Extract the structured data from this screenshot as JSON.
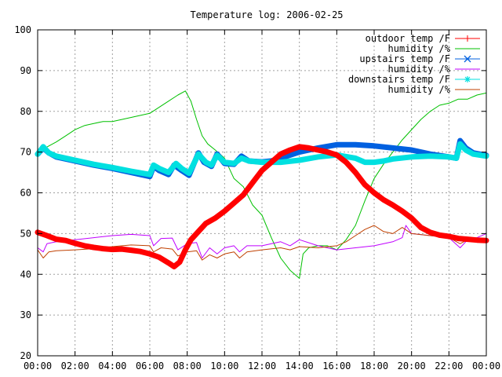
{
  "chart_data": {
    "type": "line",
    "title": "Temperature log: 2006-02-25",
    "xlabel": "",
    "ylabel": "",
    "x_ticks": [
      "00:00",
      "02:00",
      "04:00",
      "06:00",
      "08:00",
      "10:00",
      "12:00",
      "14:00",
      "16:00",
      "18:00",
      "20:00",
      "22:00",
      "00:00"
    ],
    "xlim_hours": [
      0,
      24
    ],
    "ylim": [
      20,
      100
    ],
    "y_ticks": [
      20,
      30,
      40,
      50,
      60,
      70,
      80,
      90,
      100
    ],
    "grid": true,
    "legend_position": "top-right",
    "series": [
      {
        "name": "outdoor temp /F",
        "color": "#ff0000",
        "marker": "plus",
        "points": [
          [
            0.0,
            50.3
          ],
          [
            0.5,
            49.5
          ],
          [
            1.0,
            48.6
          ],
          [
            1.5,
            48.3
          ],
          [
            2.0,
            47.6
          ],
          [
            2.5,
            47.0
          ],
          [
            3.0,
            46.6
          ],
          [
            3.5,
            46.3
          ],
          [
            4.0,
            46.1
          ],
          [
            4.5,
            46.2
          ],
          [
            5.0,
            45.9
          ],
          [
            5.5,
            45.6
          ],
          [
            6.0,
            45.0
          ],
          [
            6.5,
            44.2
          ],
          [
            7.0,
            42.8
          ],
          [
            7.3,
            41.9
          ],
          [
            7.6,
            43.0
          ],
          [
            7.9,
            46.0
          ],
          [
            8.2,
            48.5
          ],
          [
            8.6,
            50.5
          ],
          [
            9.0,
            52.5
          ],
          [
            9.5,
            53.8
          ],
          [
            10.0,
            55.5
          ],
          [
            10.5,
            57.5
          ],
          [
            11.0,
            59.5
          ],
          [
            11.5,
            62.5
          ],
          [
            12.0,
            65.5
          ],
          [
            12.5,
            67.5
          ],
          [
            13.0,
            69.5
          ],
          [
            13.5,
            70.5
          ],
          [
            14.0,
            71.3
          ],
          [
            14.5,
            71.0
          ],
          [
            15.0,
            70.5
          ],
          [
            15.5,
            70.0
          ],
          [
            16.0,
            69.3
          ],
          [
            16.5,
            67.5
          ],
          [
            17.0,
            65.0
          ],
          [
            17.5,
            62.0
          ],
          [
            18.0,
            60.0
          ],
          [
            18.5,
            58.3
          ],
          [
            19.0,
            57.0
          ],
          [
            19.5,
            55.5
          ],
          [
            20.0,
            53.8
          ],
          [
            20.5,
            51.5
          ],
          [
            21.0,
            50.3
          ],
          [
            21.5,
            49.6
          ],
          [
            22.0,
            49.3
          ],
          [
            22.5,
            48.8
          ],
          [
            23.0,
            48.6
          ],
          [
            23.5,
            48.4
          ],
          [
            24.0,
            48.3
          ]
        ]
      },
      {
        "name": "humidity /%",
        "color": "#00c000",
        "marker": "none",
        "points": [
          [
            0.0,
            70.0
          ],
          [
            1.0,
            72.5
          ],
          [
            1.5,
            74.0
          ],
          [
            2.0,
            75.5
          ],
          [
            2.5,
            76.5
          ],
          [
            3.0,
            77.0
          ],
          [
            3.5,
            77.5
          ],
          [
            4.0,
            77.5
          ],
          [
            4.5,
            78.0
          ],
          [
            5.0,
            78.5
          ],
          [
            5.5,
            79.0
          ],
          [
            6.0,
            79.5
          ],
          [
            6.5,
            81.0
          ],
          [
            7.0,
            82.5
          ],
          [
            7.5,
            84.0
          ],
          [
            7.9,
            85.0
          ],
          [
            8.2,
            82.5
          ],
          [
            8.5,
            78.0
          ],
          [
            8.8,
            74.0
          ],
          [
            9.1,
            72.0
          ],
          [
            9.5,
            70.5
          ],
          [
            10.0,
            68.5
          ],
          [
            10.5,
            63.5
          ],
          [
            11.0,
            61.5
          ],
          [
            11.5,
            57.0
          ],
          [
            12.0,
            54.5
          ],
          [
            12.5,
            49.0
          ],
          [
            13.0,
            44.0
          ],
          [
            13.5,
            41.0
          ],
          [
            14.0,
            39.0
          ],
          [
            14.2,
            45.0
          ],
          [
            14.5,
            46.5
          ],
          [
            15.0,
            47.0
          ],
          [
            15.5,
            47.0
          ],
          [
            16.0,
            46.0
          ],
          [
            16.5,
            48.5
          ],
          [
            17.0,
            52.0
          ],
          [
            17.5,
            58.0
          ],
          [
            18.0,
            63.5
          ],
          [
            18.5,
            67.0
          ],
          [
            19.0,
            70.0
          ],
          [
            19.5,
            73.0
          ],
          [
            20.0,
            75.5
          ],
          [
            20.5,
            78.0
          ],
          [
            21.0,
            80.0
          ],
          [
            21.5,
            81.5
          ],
          [
            22.0,
            82.0
          ],
          [
            22.5,
            83.0
          ],
          [
            23.0,
            83.0
          ],
          [
            23.5,
            84.0
          ],
          [
            24.0,
            84.5
          ]
        ]
      },
      {
        "name": "upstairs temp /F",
        "color": "#0060e0",
        "marker": "cross",
        "points": [
          [
            0.0,
            69.5
          ],
          [
            0.3,
            71.0
          ],
          [
            0.6,
            69.8
          ],
          [
            1.0,
            68.8
          ],
          [
            2.0,
            67.8
          ],
          [
            3.0,
            66.8
          ],
          [
            4.0,
            66.0
          ],
          [
            5.0,
            65.0
          ],
          [
            6.0,
            64.0
          ],
          [
            6.2,
            66.5
          ],
          [
            6.5,
            65.5
          ],
          [
            7.0,
            64.5
          ],
          [
            7.3,
            66.8
          ],
          [
            7.7,
            65.5
          ],
          [
            8.1,
            64.3
          ],
          [
            8.6,
            69.8
          ],
          [
            8.9,
            67.5
          ],
          [
            9.3,
            66.5
          ],
          [
            9.6,
            69.5
          ],
          [
            10.0,
            67.2
          ],
          [
            10.5,
            67.0
          ],
          [
            10.9,
            69.0
          ],
          [
            11.3,
            67.8
          ],
          [
            12.0,
            67.6
          ],
          [
            12.5,
            67.8
          ],
          [
            13.0,
            68.5
          ],
          [
            14.0,
            70.0
          ],
          [
            15.0,
            71.0
          ],
          [
            16.0,
            71.8
          ],
          [
            17.0,
            71.8
          ],
          [
            18.0,
            71.5
          ],
          [
            19.0,
            71.0
          ],
          [
            20.0,
            70.5
          ],
          [
            21.0,
            69.5
          ],
          [
            22.0,
            68.8
          ],
          [
            22.4,
            68.5
          ],
          [
            22.6,
            72.8
          ],
          [
            22.9,
            71.0
          ],
          [
            23.3,
            69.8
          ],
          [
            24.0,
            69.2
          ]
        ]
      },
      {
        "name": "humidity /%",
        "color": "#c000ff",
        "marker": "none",
        "points": [
          [
            0.0,
            46.5
          ],
          [
            0.3,
            45.5
          ],
          [
            0.5,
            47.5
          ],
          [
            1.0,
            48.0
          ],
          [
            2.0,
            48.5
          ],
          [
            3.0,
            49.0
          ],
          [
            4.0,
            49.5
          ],
          [
            5.0,
            49.8
          ],
          [
            6.0,
            49.5
          ],
          [
            6.2,
            47.0
          ],
          [
            6.6,
            48.8
          ],
          [
            7.2,
            48.9
          ],
          [
            7.5,
            46.0
          ],
          [
            8.0,
            47.5
          ],
          [
            8.5,
            47.8
          ],
          [
            8.8,
            44.0
          ],
          [
            9.2,
            46.5
          ],
          [
            9.6,
            45.0
          ],
          [
            10.0,
            46.5
          ],
          [
            10.5,
            47.0
          ],
          [
            10.8,
            45.5
          ],
          [
            11.2,
            47.0
          ],
          [
            12.0,
            47.0
          ],
          [
            13.0,
            48.0
          ],
          [
            13.5,
            47.0
          ],
          [
            14.0,
            48.5
          ],
          [
            15.0,
            47.0
          ],
          [
            16.0,
            46.0
          ],
          [
            17.0,
            46.5
          ],
          [
            18.0,
            47.0
          ],
          [
            19.0,
            48.0
          ],
          [
            19.5,
            49.0
          ],
          [
            19.7,
            52.0
          ],
          [
            20.0,
            50.0
          ],
          [
            21.0,
            49.5
          ],
          [
            22.0,
            49.0
          ],
          [
            22.6,
            46.5
          ],
          [
            23.0,
            48.5
          ],
          [
            23.5,
            49.0
          ],
          [
            24.0,
            50.0
          ]
        ]
      },
      {
        "name": "downstairs temp /F",
        "color": "#00e0e0",
        "marker": "star",
        "points": [
          [
            0.0,
            69.5
          ],
          [
            0.3,
            71.3
          ],
          [
            0.6,
            69.8
          ],
          [
            1.0,
            69.0
          ],
          [
            2.0,
            68.0
          ],
          [
            3.0,
            67.0
          ],
          [
            4.0,
            66.2
          ],
          [
            5.0,
            65.3
          ],
          [
            6.0,
            64.5
          ],
          [
            6.2,
            66.8
          ],
          [
            6.5,
            66.0
          ],
          [
            7.0,
            65.0
          ],
          [
            7.4,
            67.2
          ],
          [
            7.7,
            66.0
          ],
          [
            8.1,
            64.8
          ],
          [
            8.6,
            69.5
          ],
          [
            9.0,
            67.5
          ],
          [
            9.3,
            66.8
          ],
          [
            9.6,
            69.2
          ],
          [
            10.0,
            67.5
          ],
          [
            10.5,
            67.2
          ],
          [
            10.9,
            68.5
          ],
          [
            11.3,
            67.8
          ],
          [
            12.0,
            67.5
          ],
          [
            13.0,
            67.5
          ],
          [
            14.0,
            68.0
          ],
          [
            15.0,
            68.8
          ],
          [
            16.0,
            69.3
          ],
          [
            17.0,
            68.5
          ],
          [
            17.5,
            67.5
          ],
          [
            18.0,
            67.5
          ],
          [
            18.5,
            67.8
          ],
          [
            19.0,
            68.3
          ],
          [
            20.0,
            68.8
          ],
          [
            21.0,
            69.0
          ],
          [
            22.0,
            68.8
          ],
          [
            22.4,
            68.5
          ],
          [
            22.6,
            72.0
          ],
          [
            22.9,
            70.5
          ],
          [
            23.3,
            69.5
          ],
          [
            24.0,
            69.0
          ]
        ]
      },
      {
        "name": "humidity /%",
        "color": "#c04000",
        "marker": "none",
        "points": [
          [
            0.0,
            46.0
          ],
          [
            0.3,
            44.0
          ],
          [
            0.6,
            45.5
          ],
          [
            1.0,
            45.8
          ],
          [
            2.0,
            46.0
          ],
          [
            3.0,
            46.3
          ],
          [
            4.0,
            46.8
          ],
          [
            5.0,
            47.2
          ],
          [
            6.0,
            47.0
          ],
          [
            6.2,
            45.5
          ],
          [
            6.6,
            46.5
          ],
          [
            7.2,
            46.2
          ],
          [
            7.5,
            44.5
          ],
          [
            8.0,
            45.5
          ],
          [
            8.5,
            45.8
          ],
          [
            8.8,
            43.5
          ],
          [
            9.2,
            44.8
          ],
          [
            9.6,
            44.0
          ],
          [
            10.0,
            45.0
          ],
          [
            10.5,
            45.5
          ],
          [
            10.8,
            44.0
          ],
          [
            11.2,
            45.5
          ],
          [
            12.0,
            46.0
          ],
          [
            13.0,
            46.5
          ],
          [
            13.5,
            46.0
          ],
          [
            14.0,
            46.8
          ],
          [
            15.0,
            46.5
          ],
          [
            16.0,
            47.0
          ],
          [
            16.5,
            48.0
          ],
          [
            17.0,
            49.5
          ],
          [
            17.5,
            51.0
          ],
          [
            18.0,
            52.0
          ],
          [
            18.5,
            50.5
          ],
          [
            19.0,
            50.0
          ],
          [
            19.5,
            51.5
          ],
          [
            20.0,
            50.0
          ],
          [
            21.0,
            49.5
          ],
          [
            22.0,
            49.0
          ],
          [
            22.6,
            47.5
          ],
          [
            23.0,
            48.5
          ],
          [
            24.0,
            48.5
          ]
        ]
      }
    ]
  }
}
